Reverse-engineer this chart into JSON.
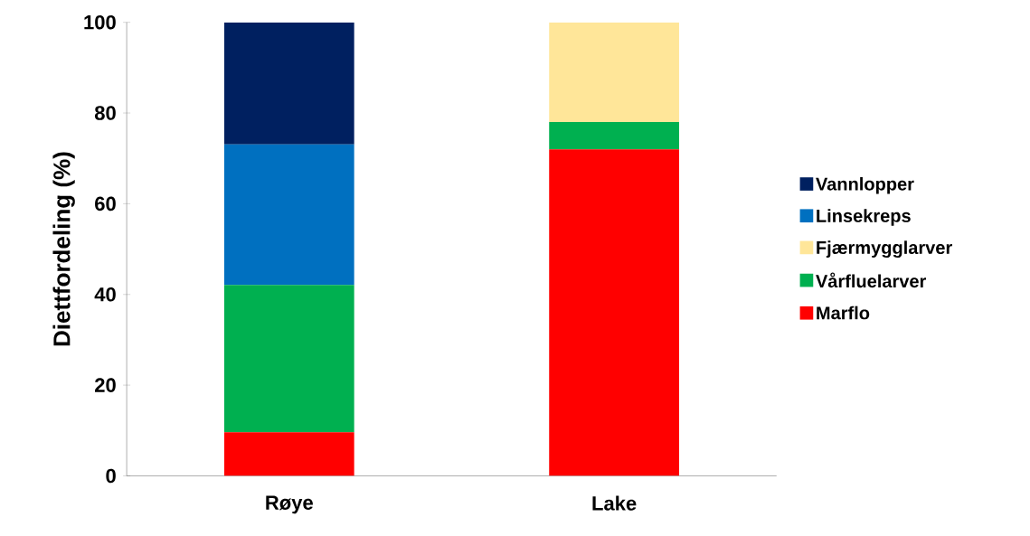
{
  "chart_data": {
    "type": "bar",
    "stacked": true,
    "ylabel": "Diettfordeling (%)",
    "categories": [
      "Røye",
      "Lake"
    ],
    "series": [
      {
        "name": "Marflo",
        "color": "#ff0000",
        "values": [
          9.6,
          72
        ]
      },
      {
        "name": "Vårfluelarver",
        "color": "#00b050",
        "values": [
          32.5,
          6
        ]
      },
      {
        "name": "Fjærmygglarver",
        "color": "#ffe699",
        "values": [
          0,
          22
        ]
      },
      {
        "name": "Linsekreps",
        "color": "#0070c0",
        "values": [
          31,
          0
        ]
      },
      {
        "name": "Vannlopper",
        "color": "#002060",
        "values": [
          26.9,
          0
        ]
      }
    ],
    "ylim": [
      0,
      100
    ],
    "yticks": [
      0,
      20,
      40,
      60,
      80,
      100
    ],
    "grid": false,
    "legend": "right"
  }
}
